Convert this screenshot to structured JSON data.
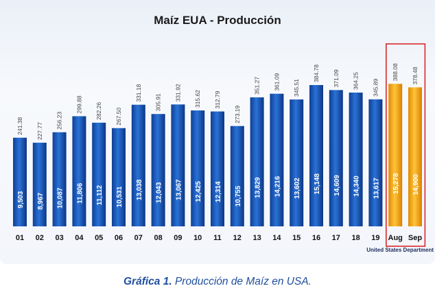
{
  "chart_data": {
    "type": "bar",
    "title": "Maíz EUA - Producción",
    "categories": [
      "01",
      "02",
      "03",
      "04",
      "05",
      "06",
      "07",
      "08",
      "09",
      "10",
      "11",
      "12",
      "13",
      "14",
      "15",
      "16",
      "17",
      "18",
      "19",
      "Aug",
      "Sep"
    ],
    "values": [
      9503,
      8967,
      10087,
      11806,
      11112,
      10531,
      13038,
      12043,
      13067,
      12425,
      12314,
      10755,
      13829,
      14216,
      13602,
      15148,
      14609,
      14340,
      13617,
      15278,
      14900
    ],
    "value_labels": [
      "9,503",
      "8,967",
      "10,087",
      "11,806",
      "11,112",
      "10,531",
      "13,038",
      "12,043",
      "13,067",
      "12,425",
      "12,314",
      "10,755",
      "13,829",
      "14,216",
      "13,602",
      "15,148",
      "14,609",
      "14,340",
      "13,617",
      "15,278",
      "14,900"
    ],
    "series2_name": "",
    "series2_values": [
      241.38,
      227.77,
      256.23,
      299.88,
      282.26,
      267.5,
      331.18,
      305.91,
      331.92,
      315.62,
      312.79,
      273.19,
      351.27,
      361.09,
      345.51,
      384.78,
      371.09,
      364.25,
      345.89,
      388.08,
      378.48
    ],
    "series2_labels": [
      "241.38",
      "227.77",
      "256.23",
      "299.88",
      "282.26",
      "267.50",
      "331.18",
      "305.91",
      "331.92",
      "315.62",
      "312.79",
      "273.19",
      "351.27",
      "361.09",
      "345.51",
      "384.78",
      "371.09",
      "364.25",
      "345.89",
      "388.08",
      "378.48"
    ],
    "highlighted_categories": [
      "Aug",
      "Sep"
    ],
    "ylim": [
      0,
      20000
    ],
    "grid": false,
    "colors": {
      "bar": "#1f5fbf",
      "bar_dark": "#0d3a8a",
      "highlight_bar": "#f5b21a",
      "highlight_dark": "#e08a00",
      "highlight_box": "#d9262b",
      "axis_text": "#111111",
      "value_label": "#333333"
    }
  },
  "source": "United States Department",
  "caption": {
    "prefix": "Gráfica 1.",
    "text": " Producción de Maíz en USA."
  }
}
